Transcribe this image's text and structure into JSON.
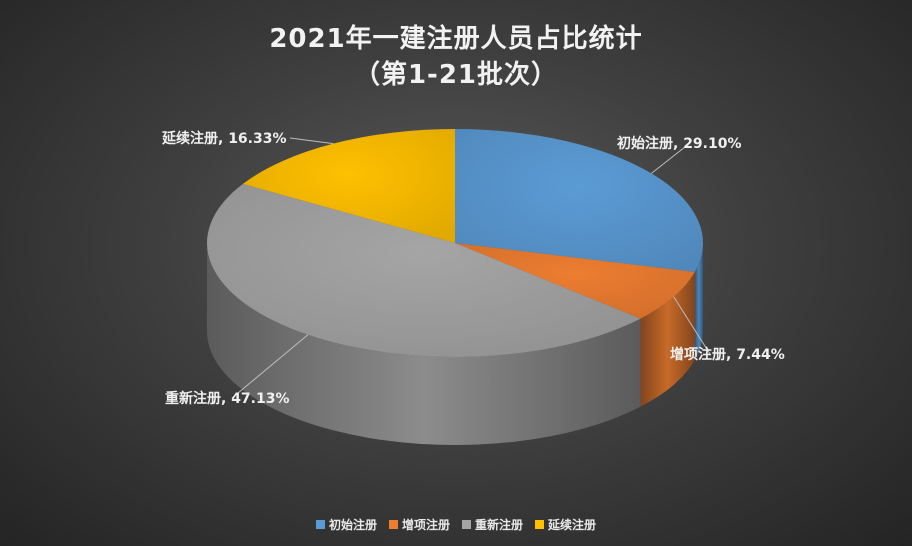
{
  "chart_data": {
    "type": "pie",
    "title": "2021年一建注册人员占比统计",
    "subtitle": "（第1-21批次）",
    "slices": [
      {
        "name": "初始注册",
        "value": 29.1,
        "label": "初始注册, 29.10%",
        "color": "#5b9bd5"
      },
      {
        "name": "增项注册",
        "value": 7.44,
        "label": "增项注册, 7.44%",
        "color": "#ed7d31"
      },
      {
        "name": "重新注册",
        "value": 47.13,
        "label": "重新注册, 47.13%",
        "color": "#a5a5a5"
      },
      {
        "name": "延续注册",
        "value": 16.33,
        "label": "延续注册, 16.33%",
        "color": "#ffc000"
      }
    ],
    "legend_position": "bottom",
    "style": "3d"
  }
}
